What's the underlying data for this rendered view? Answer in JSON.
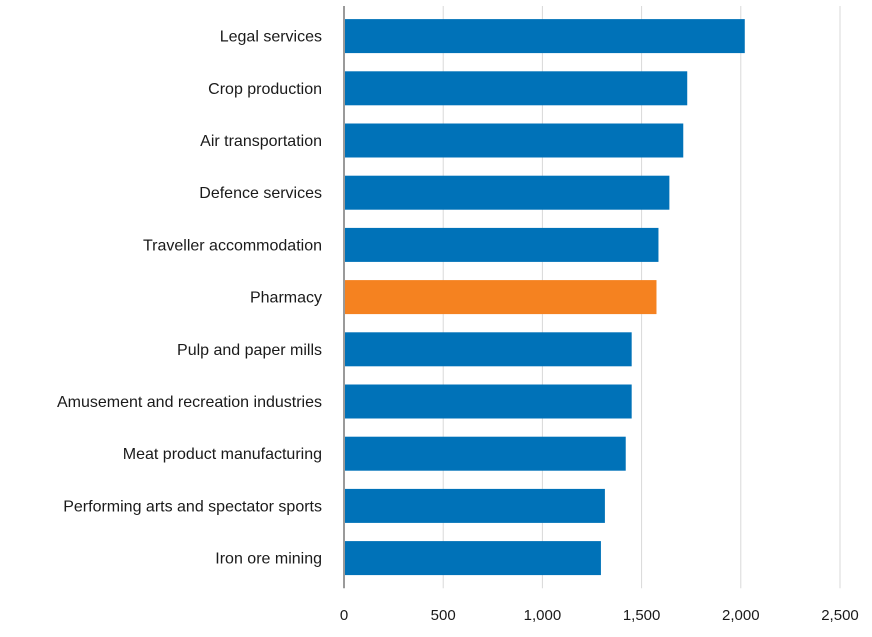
{
  "chart_data": {
    "type": "bar",
    "orientation": "horizontal",
    "title": "",
    "xlabel": "",
    "ylabel": "",
    "xlim": [
      0,
      2500
    ],
    "x_ticks": [
      0,
      500,
      1000,
      1500,
      2000,
      2500
    ],
    "x_tick_labels": [
      "0",
      "500",
      "1,000",
      "1,500",
      "2,000",
      "2,500"
    ],
    "grid": "vertical",
    "legend": "none",
    "colors": {
      "default": "#0072b8",
      "highlight": "#f58220",
      "grid": "#d9d9d9",
      "axis": "#9a9a9a",
      "text": "#1a1a1a"
    },
    "categories": [
      "Legal services",
      "Crop production",
      "Air transportation",
      "Defence services",
      "Traveller accommodation",
      "Pharmacy",
      "Pulp and paper mills",
      "Amusement and recreation industries",
      "Meat product manufacturing",
      "Performing arts and spectator sports",
      "Iron ore mining"
    ],
    "values": [
      2020,
      1730,
      1710,
      1640,
      1585,
      1575,
      1450,
      1450,
      1420,
      1315,
      1295
    ],
    "highlighted": [
      "Pharmacy"
    ]
  }
}
